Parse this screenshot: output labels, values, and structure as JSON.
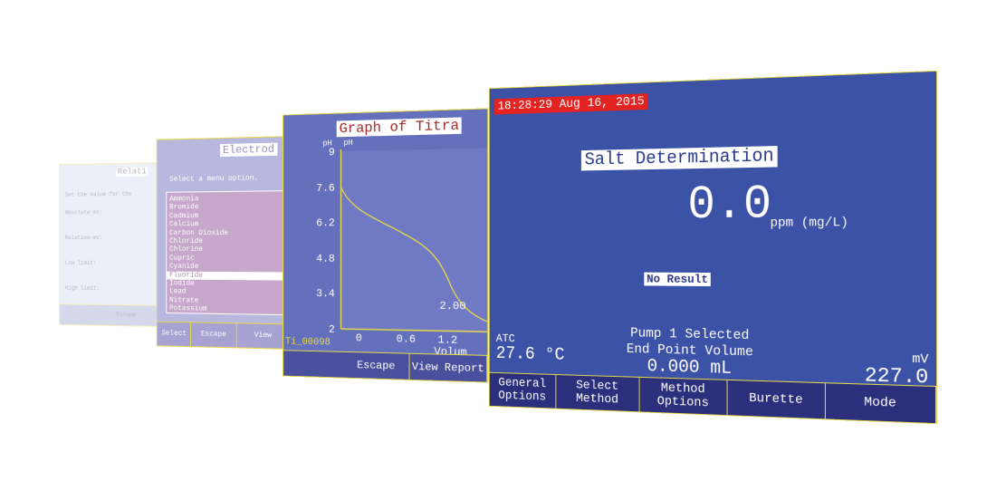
{
  "relative_screen": {
    "title": "Relati",
    "lines": [
      "Set the value for the",
      "Absolute mV:",
      "Relative mV:",
      "Low limit:",
      "High limit:"
    ],
    "buttons": [
      "Escape"
    ]
  },
  "electrode_screen": {
    "title": "Electrod",
    "prompt": "Select a menu option.",
    "options": [
      "Ammonia",
      "Bromide",
      "Cadmium",
      "Calcium",
      "Carbon Dioxide",
      "Chloride",
      "Chlorine",
      "Cupric",
      "Cyanide",
      "Fluoride",
      "Iodide",
      "Lead",
      "Nitrate",
      "Potassium"
    ],
    "buttons": [
      "Select",
      "Escape",
      "View"
    ]
  },
  "graph_screen": {
    "title": "Graph of Titra",
    "y_label": "pH",
    "y_unit": "pH",
    "yticks": [
      "9",
      "7.6",
      "6.2",
      "4.8",
      "3.4",
      "2"
    ],
    "xticks": [
      "0",
      "0.6",
      "1.2"
    ],
    "x_label": "Volum",
    "annotation": "2.00",
    "file": "Ti_00098",
    "buttons": [
      "Escape",
      "View Report"
    ]
  },
  "main_screen": {
    "timestamp": "18:28:29 Aug 16, 2015",
    "method": "Salt Determination",
    "reading": "0.0",
    "reading_unit": "ppm (mg/L)",
    "status": "No Result",
    "pump": "Pump 1 Selected",
    "end_point_label": "End Point Volume",
    "end_point_value": "0.000 mL",
    "atc_label": "ATC",
    "temperature": "27.6 °C",
    "mv_label": "mV",
    "mv_value": "227.0",
    "buttons": [
      "General Options",
      "Select Method",
      "Method Options",
      "Burette",
      "Mode"
    ]
  }
}
